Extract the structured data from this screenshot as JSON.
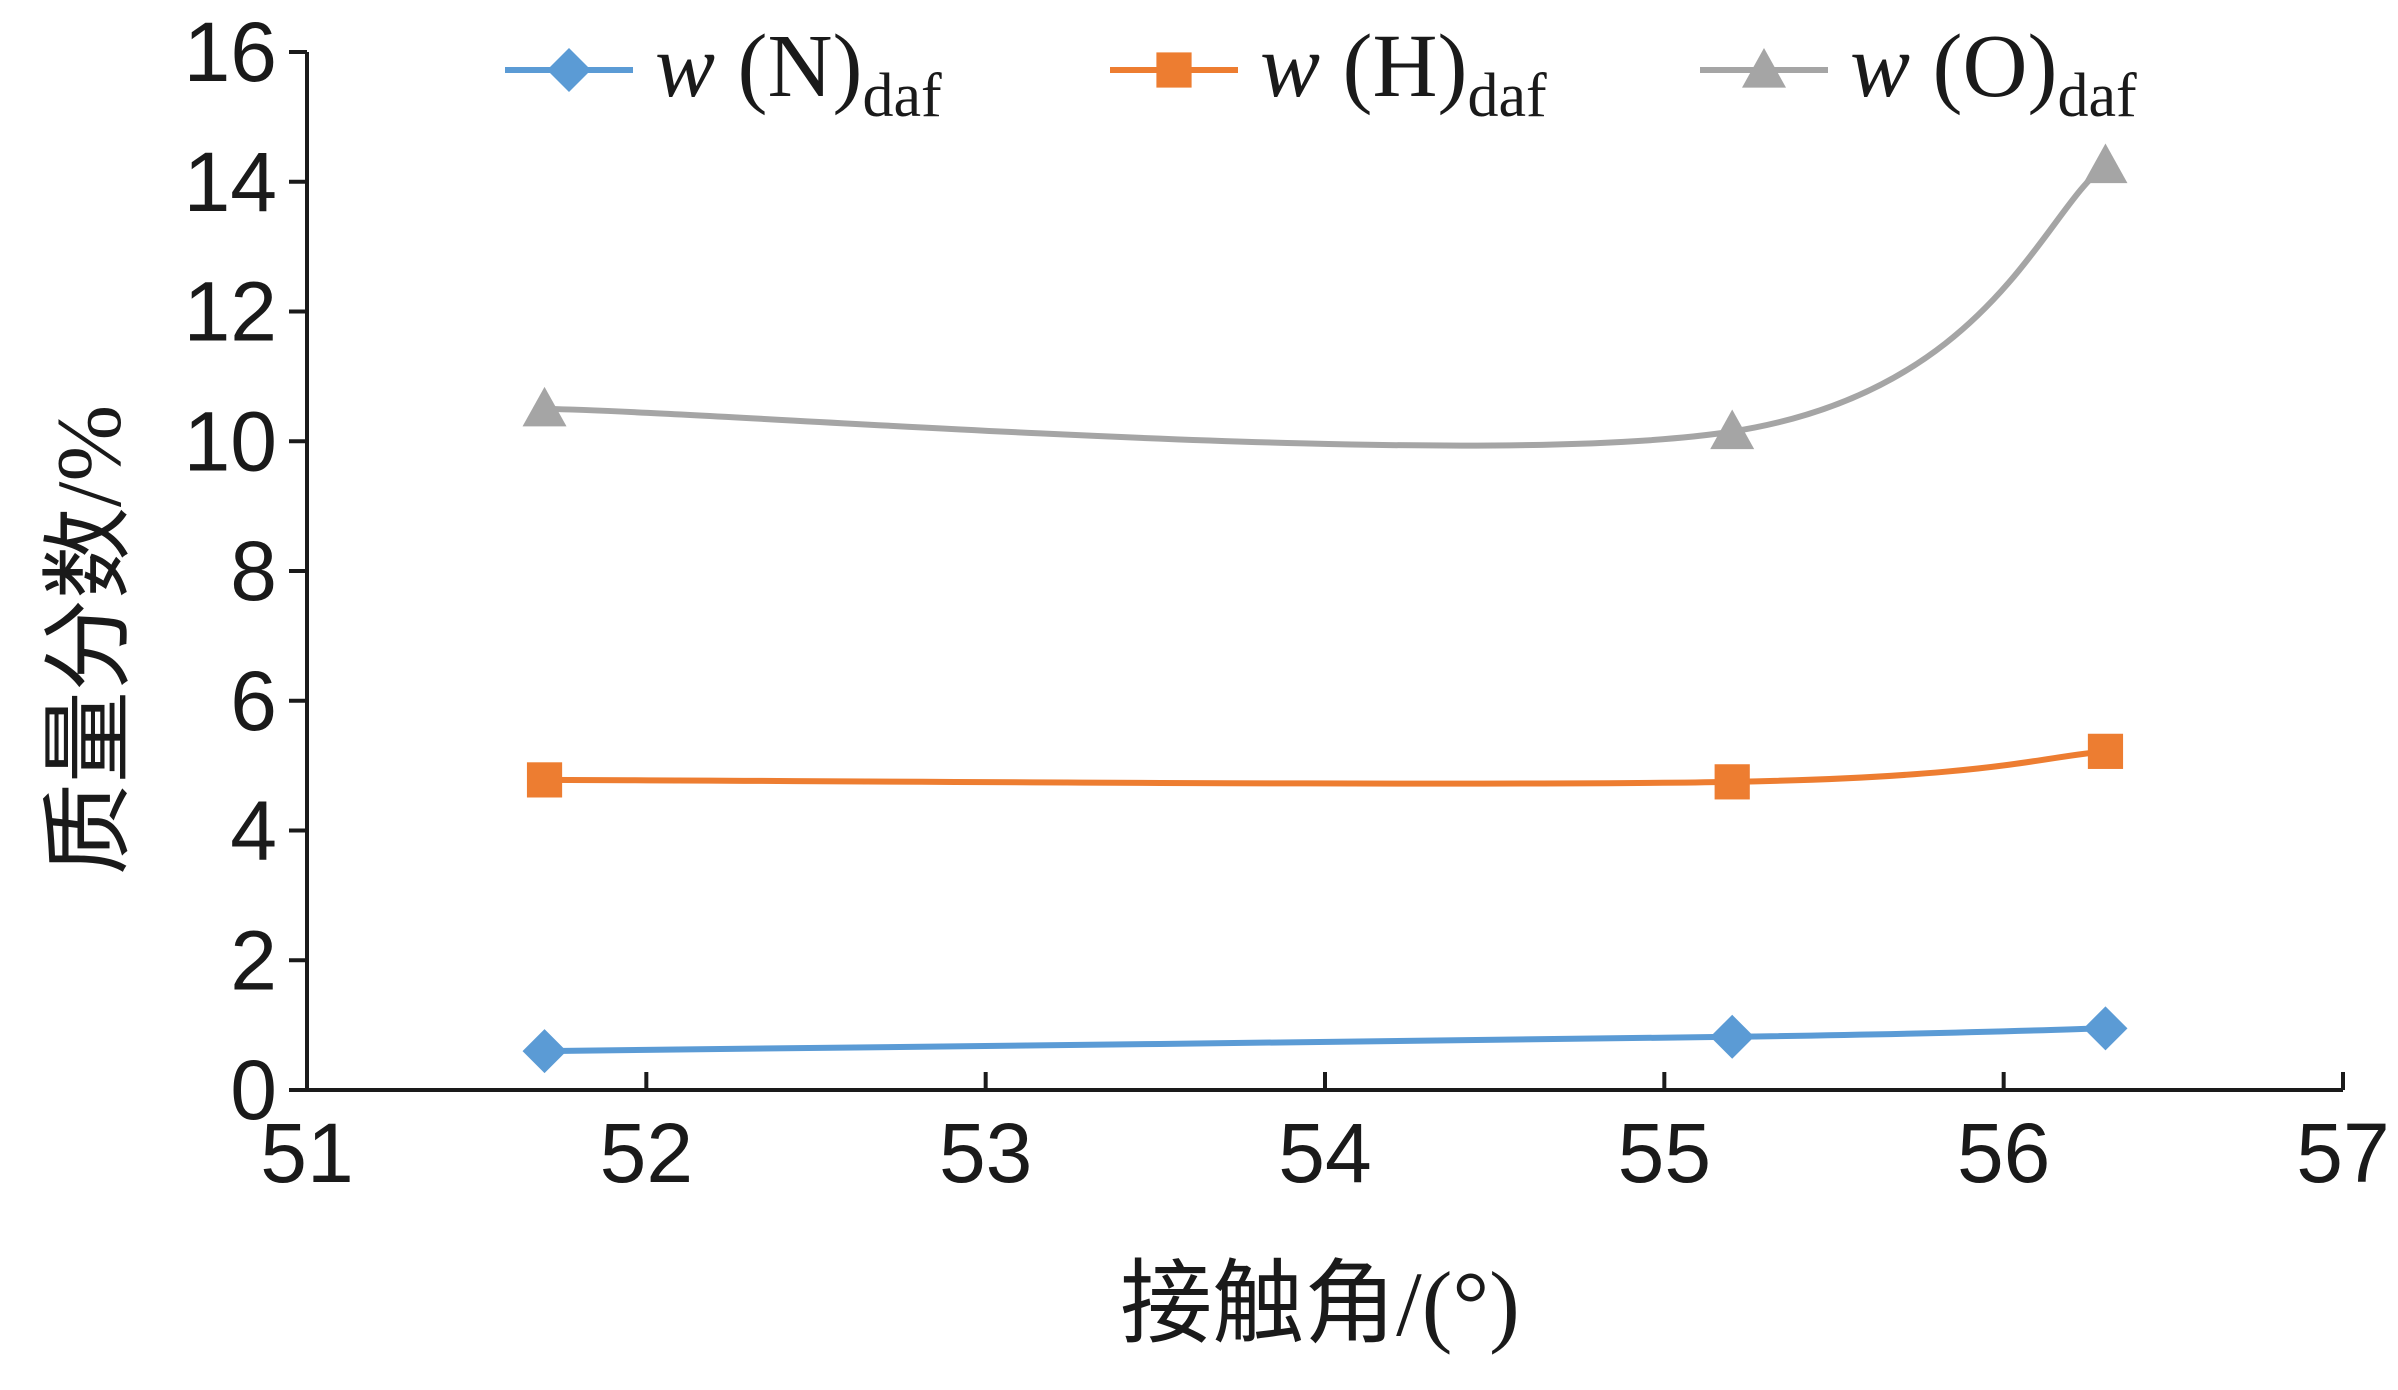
{
  "chart_data": {
    "type": "line",
    "xlabel": "接触角/(°)",
    "ylabel": "质量分数/%",
    "xlim": [
      51,
      57
    ],
    "ylim": [
      0,
      16
    ],
    "x_ticks": [
      "51",
      "52",
      "53",
      "54",
      "55",
      "56",
      "57"
    ],
    "y_ticks": [
      "0",
      "2",
      "4",
      "6",
      "8",
      "10",
      "12",
      "14",
      "16"
    ],
    "x": [
      51.7,
      55.2,
      56.3
    ],
    "grid": false,
    "legend_position": "top",
    "smooth": true,
    "series": [
      {
        "name": "w (N)daf",
        "name_main": "w",
        "name_paren": " (N)",
        "name_sub": "daf",
        "marker": "diamond",
        "color": "#5b9bd5",
        "values": [
          0.6,
          0.82,
          0.95
        ]
      },
      {
        "name": "w (H)daf",
        "name_main": "w",
        "name_paren": " (H)",
        "name_sub": "daf",
        "marker": "square",
        "color": "#ed7d31",
        "values": [
          4.78,
          4.75,
          5.22
        ]
      },
      {
        "name": "w (O)daf",
        "name_main": "w",
        "name_paren": " (O)",
        "name_sub": "daf",
        "marker": "triangle",
        "color": "#a5a5a5",
        "values": [
          10.5,
          10.15,
          14.25
        ]
      }
    ]
  }
}
